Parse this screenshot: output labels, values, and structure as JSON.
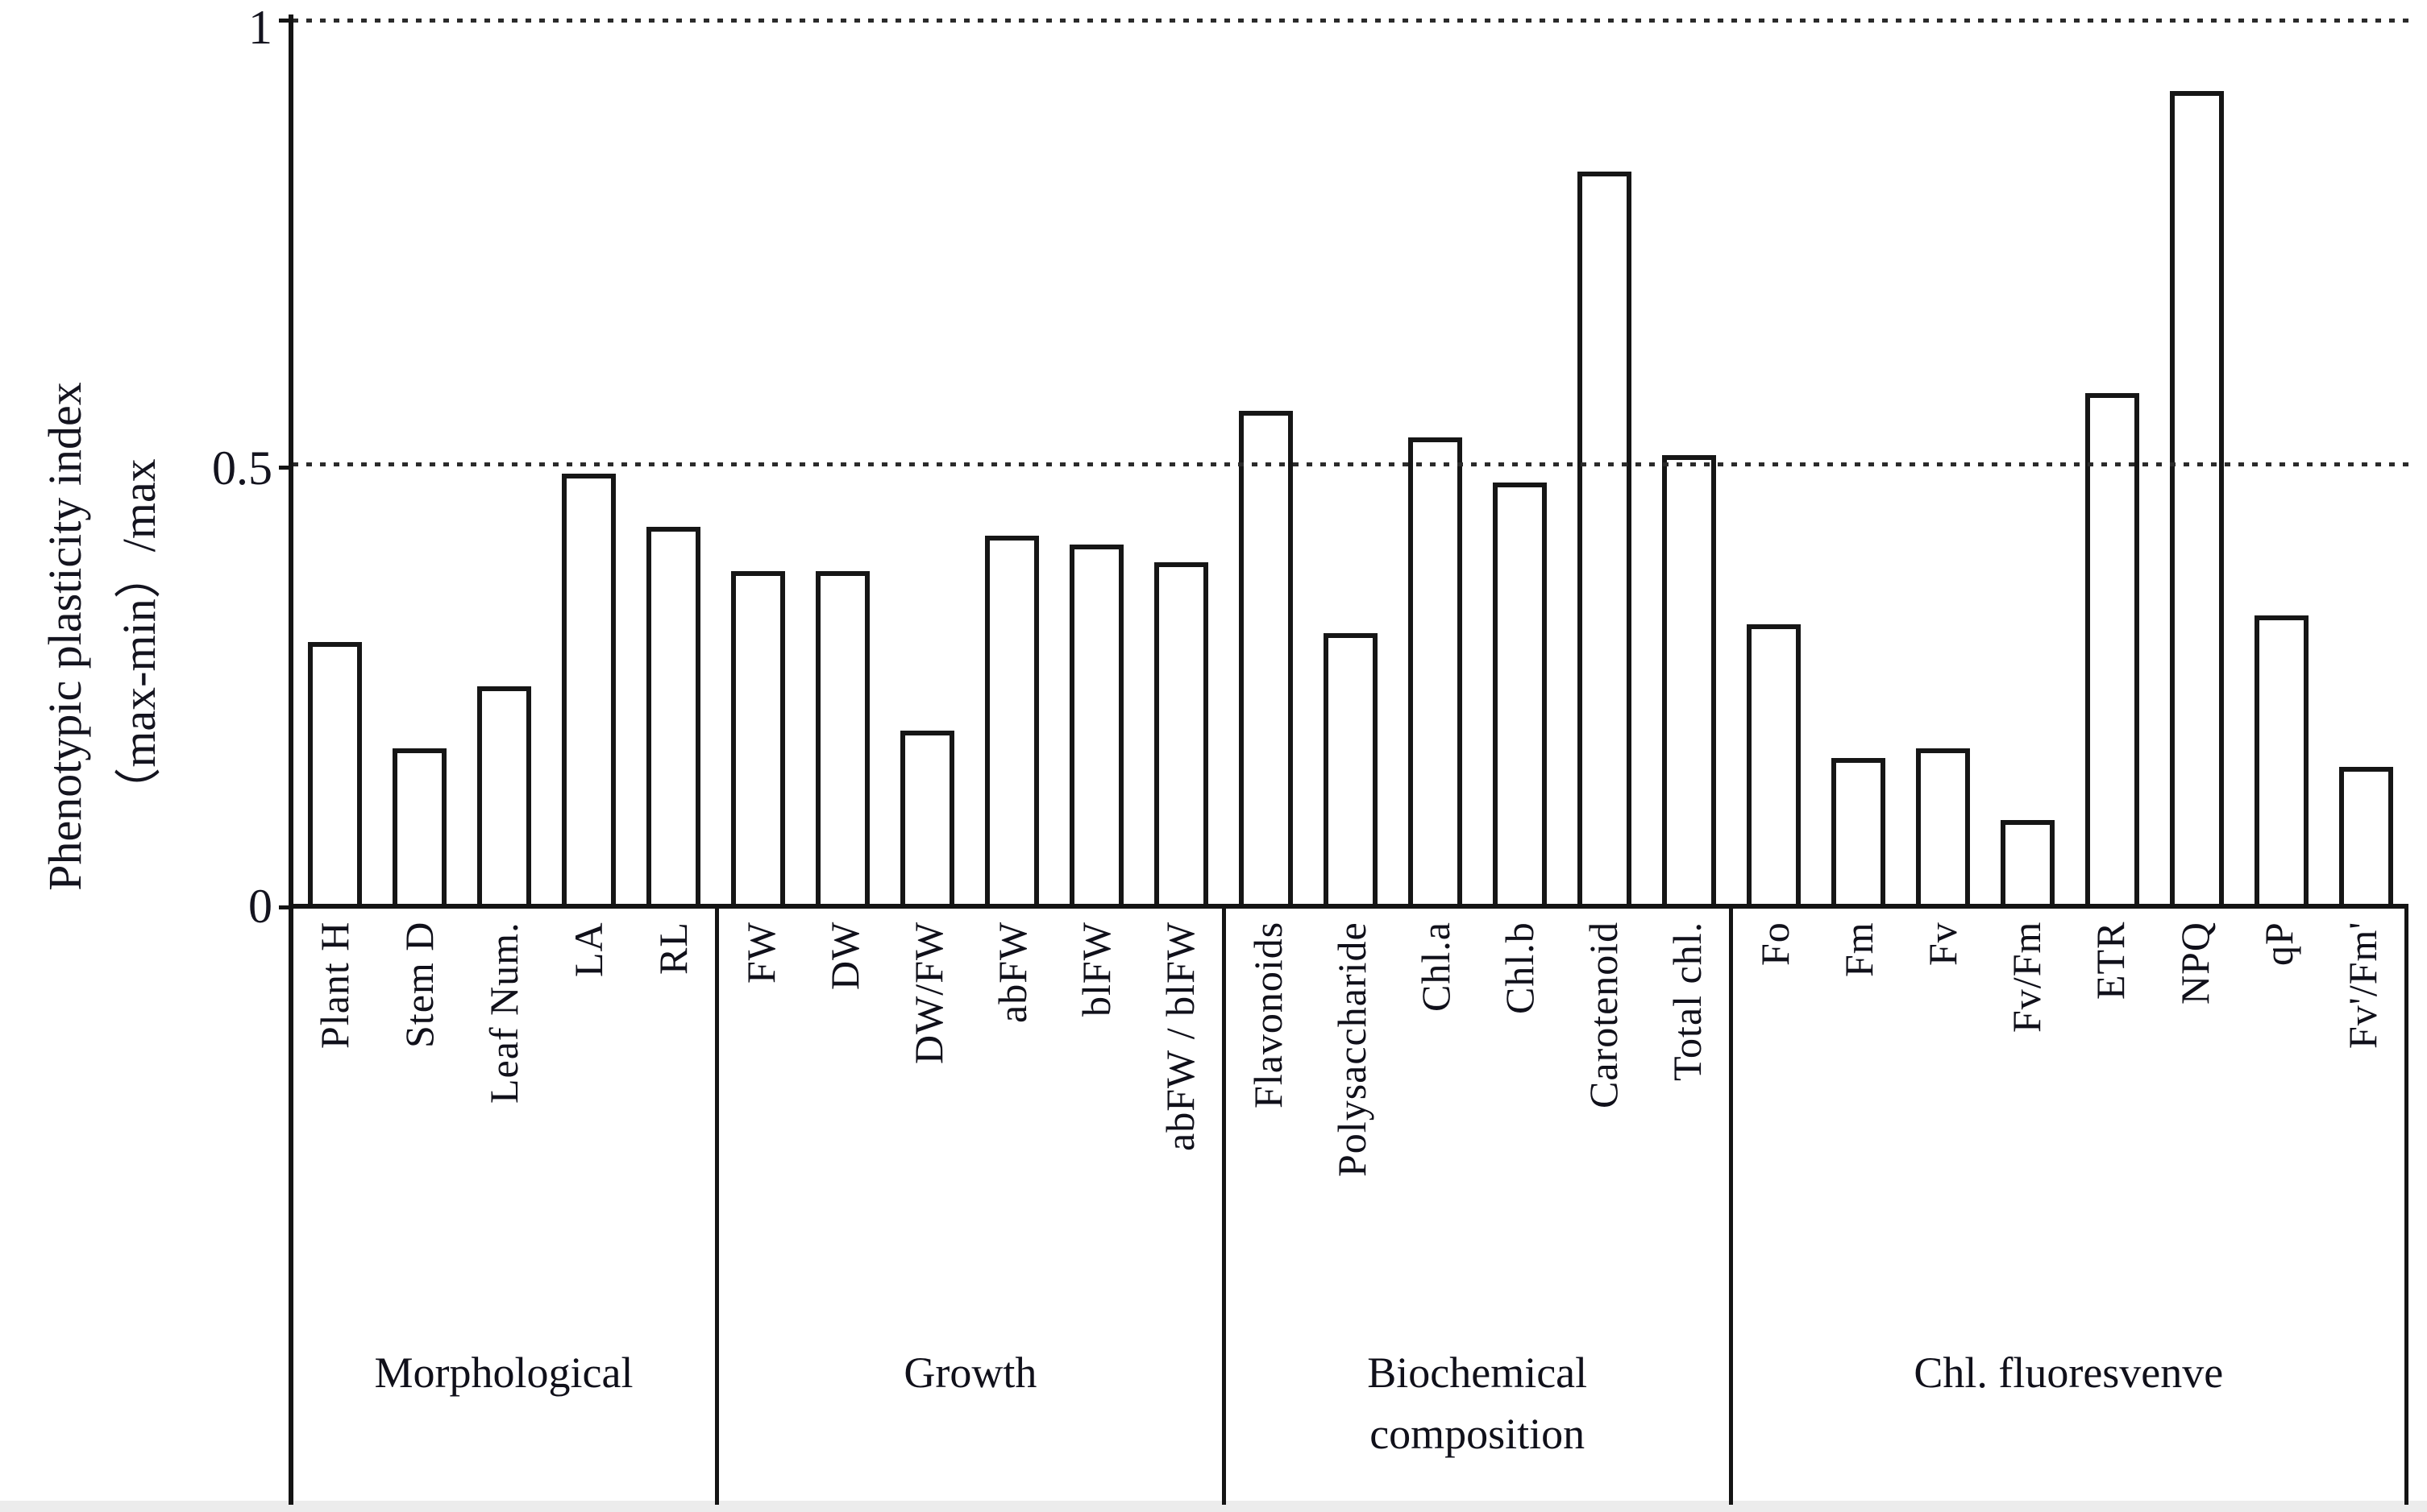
{
  "figure": {
    "background": "#ffffff",
    "ink_color": "#141414",
    "y_axis": {
      "title_line1": "Phenotypic plasticity index",
      "title_line2": "（max-min）/max",
      "tick_labels": [
        "1",
        "0.5",
        "0"
      ]
    }
  },
  "chart_data": {
    "type": "bar",
    "title": "",
    "xlabel": "",
    "ylabel": "Phenotypic plasticity index （max-min）/max",
    "ylim": [
      0,
      1
    ],
    "yticks": [
      0,
      0.5,
      1
    ],
    "gridlines_dotted_at": [
      0.5,
      1.0
    ],
    "legend": "none",
    "bar_fill": "#ffffff",
    "bar_stroke": "#161616",
    "groups": [
      {
        "label": "Morphological",
        "categories": [
          "Plant H",
          "Stem D",
          "Leaf Num.",
          "LA",
          "RL"
        ],
        "values": [
          0.3,
          0.18,
          0.25,
          0.49,
          0.43
        ]
      },
      {
        "label": "Growth",
        "categories": [
          "FW",
          "DW",
          "DW/FW",
          "abFW",
          "blFW",
          "abFW / blFW"
        ],
        "values": [
          0.38,
          0.38,
          0.2,
          0.42,
          0.41,
          0.39
        ]
      },
      {
        "label": "Biochemical\ncomposition",
        "categories": [
          "Flavonoids",
          "Polysaccharide",
          "Chl.a",
          "Chl.b",
          "Carotenoid",
          "Total chl."
        ],
        "values": [
          0.56,
          0.31,
          0.53,
          0.48,
          0.83,
          0.51
        ]
      },
      {
        "label": "Chl. fluoresvenve",
        "categories": [
          "Fo",
          "Fm",
          "Fv",
          "Fv/Fm",
          "ETR",
          "NPQ",
          "qP",
          "Fv'/Fm'"
        ],
        "values": [
          0.32,
          0.17,
          0.18,
          0.1,
          0.58,
          0.92,
          0.33,
          0.16
        ]
      }
    ]
  }
}
